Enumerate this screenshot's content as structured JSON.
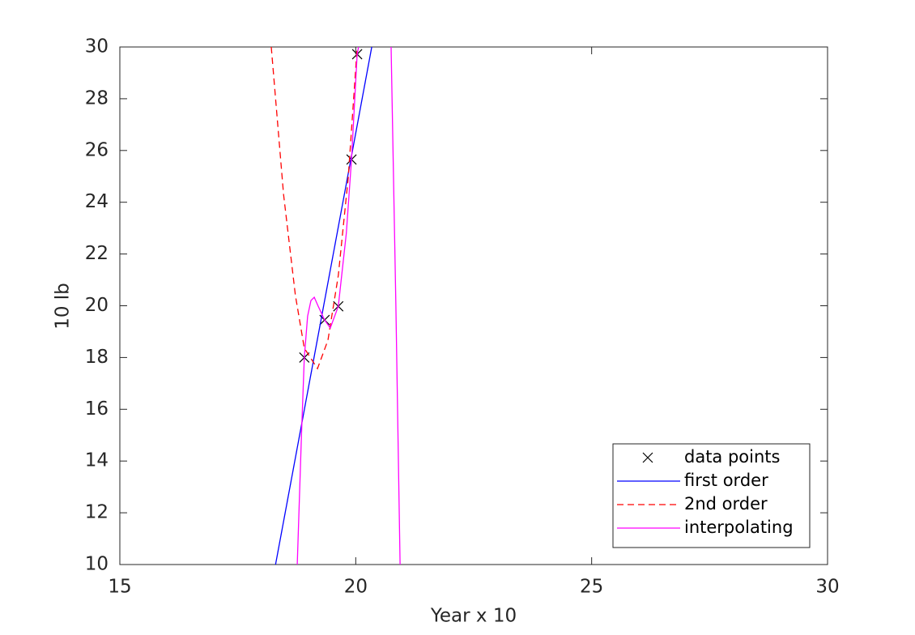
{
  "chart_data": {
    "type": "line",
    "x_label": "Year x 10",
    "y_label": "10 lb",
    "xlim": [
      15,
      30
    ],
    "xticks": [
      15,
      20,
      25,
      30
    ],
    "ylim": [
      10,
      30
    ],
    "yticks": [
      10,
      12,
      14,
      16,
      18,
      20,
      22,
      24,
      26,
      28,
      30
    ],
    "grid": false,
    "legend": "lower right",
    "series": [
      {
        "name": "data points",
        "color": "#000000",
        "line": "none",
        "marker": "x",
        "x": [
          18.91,
          19.34,
          19.63,
          19.91,
          20.03
        ],
        "values": [
          18,
          19.45,
          19.98,
          25.65,
          29.72
        ]
      },
      {
        "name": "first order",
        "color": "#0000ff",
        "line": "solid",
        "marker": "none",
        "x": [
          18.3,
          20.34
        ],
        "values": [
          10,
          30
        ]
      },
      {
        "name": "2nd order",
        "color": "#ff0000",
        "line": "dashed",
        "marker": "none",
        "x": [
          18.21,
          18.47,
          18.72,
          18.91,
          19.19,
          19.41,
          19.63,
          19.84,
          20.03
        ],
        "values": [
          30,
          24.3,
          20.4,
          18.36,
          17.57,
          18.67,
          21.17,
          24.93,
          30
        ]
      },
      {
        "name": "interpolating",
        "color": "#ff00ff",
        "line": "solid",
        "marker": "none",
        "x": [
          18.76,
          18.85,
          18.91,
          18.98,
          19.05,
          19.12,
          19.2,
          19.34,
          19.46,
          19.63,
          19.8,
          19.91,
          20.03,
          20.06,
          null,
          20.75,
          20.85,
          20.94
        ],
        "values": [
          10,
          15,
          18,
          19.6,
          20.2,
          20.33,
          20.0,
          19.45,
          19.14,
          19.98,
          22.8,
          25.65,
          29.72,
          30,
          null,
          30,
          20,
          10
        ]
      }
    ]
  }
}
